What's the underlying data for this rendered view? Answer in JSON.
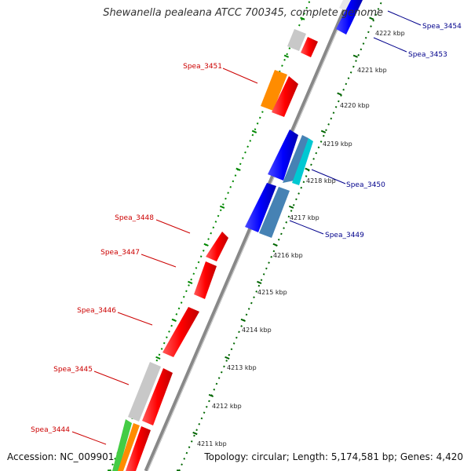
{
  "title": "Shewanella pealeana ATCC 700345, complete genome",
  "accession": "Accession: NC_009901",
  "summary": "Topology: circular; Length: 5,174,581 bp; Genes: 4,420",
  "colors": {
    "forward": "#ff0000",
    "reverse": "#0000ff",
    "backbone": "#888888",
    "ticks_left": "#008800",
    "ticks_right": "#006600",
    "red_label": "#cc0000",
    "blue_label": "#00008b"
  },
  "scale_labels": [
    "4211 kbp",
    "4212 kbp",
    "4213 kbp",
    "4214 kbp",
    "4215 kbp",
    "4216 kbp",
    "4217 kbp",
    "4218 kbp",
    "4219 kbp",
    "4220 kbp",
    "4221 kbp",
    "4222 kbp"
  ],
  "gene_labels_left": [
    "Spea_3451",
    "Spea_3448",
    "Spea_3447",
    "Spea_3446",
    "Spea_3445",
    "Spea_3444"
  ],
  "gene_labels_right": [
    "Spea_3454",
    "Spea_3453",
    "Spea_3450",
    "Spea_3449"
  ]
}
